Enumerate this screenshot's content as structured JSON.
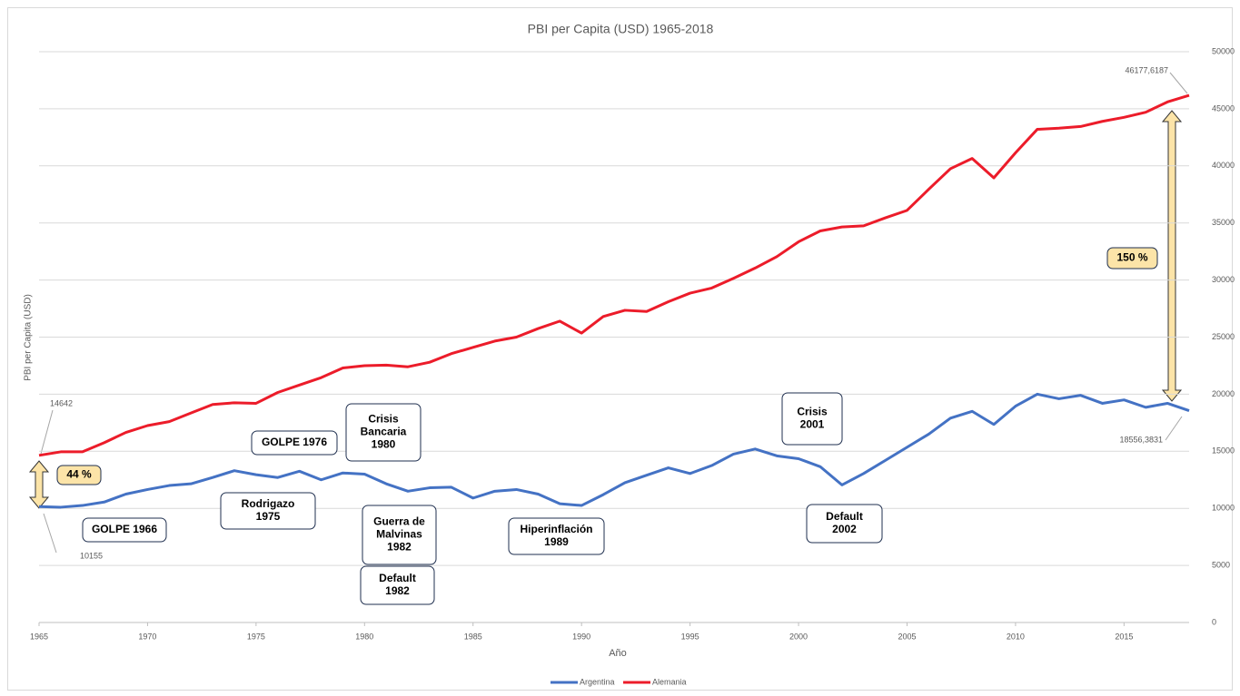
{
  "chart_data": {
    "type": "line",
    "title": "PBI per Capita (USD) 1965-2018",
    "xlabel": "Año",
    "ylabel": "PBI per Capita (USD)",
    "x": [
      1965,
      1966,
      1967,
      1968,
      1969,
      1970,
      1971,
      1972,
      1973,
      1974,
      1975,
      1976,
      1977,
      1978,
      1979,
      1980,
      1981,
      1982,
      1983,
      1984,
      1985,
      1986,
      1987,
      1988,
      1989,
      1990,
      1991,
      1992,
      1993,
      1994,
      1995,
      1996,
      1997,
      1998,
      1999,
      2000,
      2001,
      2002,
      2003,
      2004,
      2005,
      2006,
      2007,
      2008,
      2009,
      2010,
      2011,
      2012,
      2013,
      2014,
      2015,
      2016,
      2017,
      2018
    ],
    "xlim": [
      1965,
      2018
    ],
    "xticks": [
      1965,
      1970,
      1975,
      1980,
      1985,
      1990,
      1995,
      2000,
      2005,
      2010,
      2015
    ],
    "ylim": [
      0,
      50000
    ],
    "yticks": [
      0,
      5000,
      10000,
      15000,
      20000,
      25000,
      30000,
      35000,
      40000,
      45000,
      50000
    ],
    "grid": true,
    "legend": "bottom",
    "series": [
      {
        "name": "Argentina",
        "color": "#4472c4",
        "values": [
          10155,
          10100,
          10250,
          10550,
          11250,
          11650,
          12000,
          12150,
          12700,
          13300,
          12950,
          12700,
          13250,
          12500,
          13100,
          13000,
          12150,
          11500,
          11800,
          11850,
          10900,
          11500,
          11650,
          11250,
          10400,
          10250,
          11200,
          12250,
          12900,
          13550,
          13050,
          13750,
          14750,
          15200,
          14600,
          14350,
          13650,
          12050,
          13050,
          14200,
          15350,
          16500,
          17900,
          18500,
          17350,
          18950,
          20000,
          19600,
          19900,
          19200,
          19500,
          18850,
          19200,
          18556.3831
        ],
        "value_labels": [
          "10155",
          null,
          null,
          null,
          null,
          null,
          null,
          null,
          null,
          null,
          null,
          null,
          null,
          null,
          null,
          null,
          null,
          null,
          null,
          null,
          null,
          null,
          null,
          null,
          null,
          null,
          null,
          null,
          null,
          null,
          null,
          null,
          null,
          null,
          null,
          null,
          null,
          null,
          null,
          null,
          null,
          null,
          null,
          null,
          null,
          null,
          null,
          null,
          null,
          null,
          null,
          null,
          null,
          "18556,3831"
        ]
      },
      {
        "name": "Alemania",
        "color": "#ec1c2a",
        "values": [
          14642,
          14950,
          14950,
          15750,
          16650,
          17250,
          17600,
          18350,
          19100,
          19250,
          19200,
          20150,
          20800,
          21450,
          22300,
          22500,
          22550,
          22400,
          22800,
          23550,
          24100,
          24650,
          25000,
          25750,
          26400,
          25350,
          26800,
          27350,
          27250,
          28100,
          28850,
          29300,
          30150,
          31050,
          32050,
          33350,
          34300,
          34650,
          34750,
          35450,
          36100,
          37950,
          39750,
          40650,
          38950,
          41150,
          43200,
          43300,
          43450,
          43900,
          44250,
          44700,
          45600,
          46177.6187
        ],
        "value_labels": [
          "14642",
          null,
          null,
          null,
          null,
          null,
          null,
          null,
          null,
          null,
          null,
          null,
          null,
          null,
          null,
          null,
          null,
          null,
          null,
          null,
          null,
          null,
          null,
          null,
          null,
          null,
          null,
          null,
          null,
          null,
          null,
          null,
          null,
          null,
          null,
          null,
          null,
          null,
          null,
          null,
          null,
          null,
          null,
          null,
          null,
          null,
          null,
          null,
          null,
          null,
          null,
          null,
          null,
          "46177,6187"
        ]
      }
    ],
    "annotations": [
      {
        "lines": [
          "GOLPE 1966"
        ]
      },
      {
        "lines": [
          "Rodrigazo",
          "1975"
        ]
      },
      {
        "lines": [
          "GOLPE 1976"
        ]
      },
      {
        "lines": [
          "Crisis",
          "Bancaria",
          "1980"
        ]
      },
      {
        "lines": [
          "Guerra de",
          "Malvinas",
          "1982"
        ]
      },
      {
        "lines": [
          "Default",
          "1982"
        ]
      },
      {
        "lines": [
          "Hiperinflación",
          "1989"
        ]
      },
      {
        "lines": [
          "Crisis",
          "2001"
        ]
      },
      {
        "lines": [
          "Default",
          "2002"
        ]
      },
      {
        "lines": [
          "44 %"
        ]
      },
      {
        "lines": [
          "150 %"
        ]
      }
    ]
  }
}
